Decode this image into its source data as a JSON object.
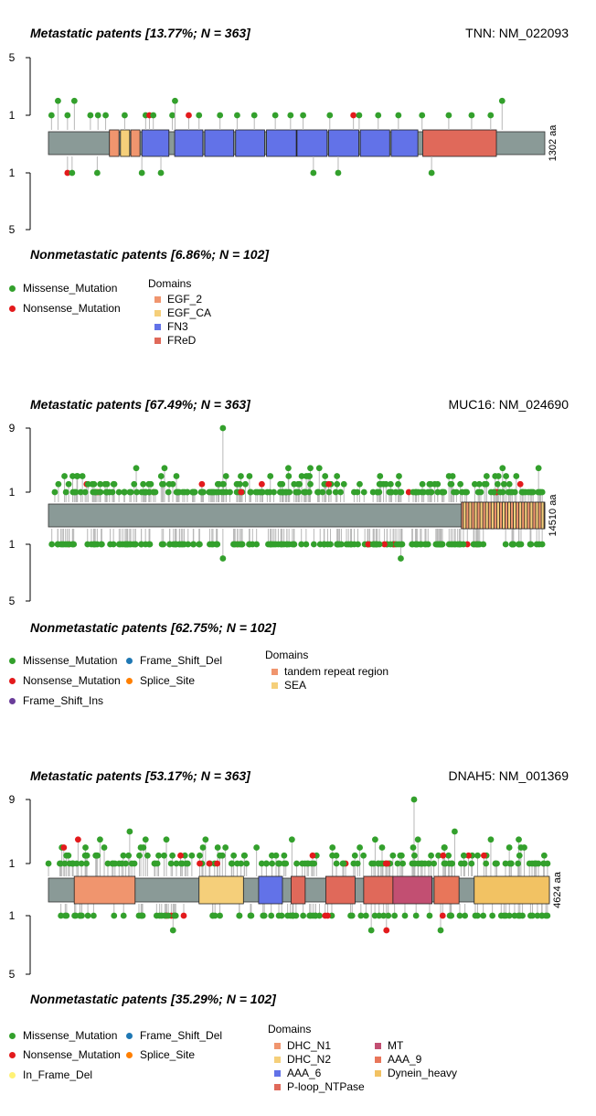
{
  "colors": {
    "missense": "#33a02c",
    "nonsense": "#e31a1c",
    "frame_shift_del": "#1f78b4",
    "splice_site": "#ff7f00",
    "frame_shift_ins": "#6a3d9a",
    "in_frame_del": "#fff275",
    "backbone": "#8a9a97",
    "stem": "#b8b8b8"
  },
  "chart_data": [
    {
      "type": "lollipop",
      "title": "Metastatic patents [13.77%; N = 363]",
      "bottom_title": "Nonmetastatic patents [6.86%; N = 102]",
      "gene_label": "TNN: NM_022093",
      "protein_length": 1302,
      "protein_length_label": "1302 aa",
      "y_ticks_top": [
        "5",
        "1"
      ],
      "y_ticks_bottom": [
        "1",
        "5"
      ],
      "ylim_top": [
        0,
        5
      ],
      "ylim_bottom": [
        0,
        5
      ],
      "variant_legend": [
        {
          "label": "Missense_Mutation",
          "color": "#33a02c"
        },
        {
          "label": "Nonsense_Mutation",
          "color": "#e31a1c"
        }
      ],
      "domains_title": "Domains",
      "domain_legend": [
        {
          "label": "EGF_2",
          "color": "#f0956e"
        },
        {
          "label": "EGF_CA",
          "color": "#f5cf7a"
        },
        {
          "label": "FN3",
          "color": "#6272e8"
        },
        {
          "label": "FReD",
          "color": "#e0695a"
        }
      ],
      "domains": [
        {
          "name": "EGF_2",
          "start": 160,
          "end": 185,
          "color": "#f0956e"
        },
        {
          "name": "EGF_CA",
          "start": 189,
          "end": 213,
          "color": "#f5cf7a"
        },
        {
          "name": "EGF_2",
          "start": 216,
          "end": 240,
          "color": "#f0956e"
        },
        {
          "name": "FN3",
          "start": 245,
          "end": 316,
          "color": "#6272e8"
        },
        {
          "name": "FN3",
          "start": 331,
          "end": 405,
          "color": "#6272e8"
        },
        {
          "name": "FN3",
          "start": 410,
          "end": 486,
          "color": "#6272e8"
        },
        {
          "name": "FN3",
          "start": 491,
          "end": 567,
          "color": "#6272e8"
        },
        {
          "name": "FN3",
          "start": 572,
          "end": 650,
          "color": "#6272e8"
        },
        {
          "name": "FN3",
          "start": 652,
          "end": 731,
          "color": "#6272e8"
        },
        {
          "name": "FN3",
          "start": 735,
          "end": 814,
          "color": "#6272e8"
        },
        {
          "name": "FN3",
          "start": 818,
          "end": 895,
          "color": "#6272e8"
        },
        {
          "name": "FN3",
          "start": 899,
          "end": 969,
          "color": "#6272e8"
        },
        {
          "name": "FReD",
          "start": 982,
          "end": 1175,
          "color": "#e0695a"
        }
      ],
      "top_mutations": [
        {
          "pos": 8,
          "count": 1,
          "type": "missense"
        },
        {
          "pos": 25,
          "count": 2,
          "type": "missense"
        },
        {
          "pos": 50,
          "count": 1,
          "type": "missense"
        },
        {
          "pos": 68,
          "count": 2,
          "type": "missense"
        },
        {
          "pos": 110,
          "count": 1,
          "type": "missense"
        },
        {
          "pos": 130,
          "count": 1,
          "type": "missense"
        },
        {
          "pos": 150,
          "count": 1,
          "type": "missense"
        },
        {
          "pos": 200,
          "count": 1,
          "type": "missense"
        },
        {
          "pos": 255,
          "count": 1,
          "type": "missense"
        },
        {
          "pos": 265,
          "count": 1,
          "type": "nonsense"
        },
        {
          "pos": 275,
          "count": 1,
          "type": "missense"
        },
        {
          "pos": 325,
          "count": 1,
          "type": "missense"
        },
        {
          "pos": 332,
          "count": 2,
          "type": "missense"
        },
        {
          "pos": 368,
          "count": 1,
          "type": "nonsense"
        },
        {
          "pos": 395,
          "count": 1,
          "type": "missense"
        },
        {
          "pos": 450,
          "count": 1,
          "type": "missense"
        },
        {
          "pos": 495,
          "count": 1,
          "type": "missense"
        },
        {
          "pos": 540,
          "count": 1,
          "type": "missense"
        },
        {
          "pos": 595,
          "count": 1,
          "type": "missense"
        },
        {
          "pos": 635,
          "count": 1,
          "type": "missense"
        },
        {
          "pos": 668,
          "count": 1,
          "type": "missense"
        },
        {
          "pos": 738,
          "count": 1,
          "type": "missense"
        },
        {
          "pos": 800,
          "count": 1,
          "type": "nonsense"
        },
        {
          "pos": 815,
          "count": 1,
          "type": "missense"
        },
        {
          "pos": 865,
          "count": 1,
          "type": "missense"
        },
        {
          "pos": 918,
          "count": 1,
          "type": "missense"
        },
        {
          "pos": 980,
          "count": 1,
          "type": "missense"
        },
        {
          "pos": 1050,
          "count": 1,
          "type": "missense"
        },
        {
          "pos": 1110,
          "count": 1,
          "type": "missense"
        },
        {
          "pos": 1160,
          "count": 1,
          "type": "missense"
        },
        {
          "pos": 1190,
          "count": 2,
          "type": "missense"
        }
      ],
      "bottom_mutations": [
        {
          "pos": 50,
          "count": 1,
          "type": "nonsense"
        },
        {
          "pos": 62,
          "count": 1,
          "type": "missense"
        },
        {
          "pos": 128,
          "count": 1,
          "type": "missense"
        },
        {
          "pos": 245,
          "count": 1,
          "type": "missense"
        },
        {
          "pos": 295,
          "count": 1,
          "type": "missense"
        },
        {
          "pos": 695,
          "count": 1,
          "type": "missense"
        },
        {
          "pos": 760,
          "count": 1,
          "type": "missense"
        },
        {
          "pos": 1005,
          "count": 1,
          "type": "missense"
        }
      ]
    },
    {
      "type": "lollipop",
      "title": "Metastatic patents [67.49%; N = 363]",
      "bottom_title": "Nonmetastatic patents [62.75%; N = 102]",
      "gene_label": "MUC16: NM_024690",
      "protein_length": 14510,
      "protein_length_label": "14510 aa",
      "y_ticks_top": [
        "9",
        "1"
      ],
      "y_ticks_bottom": [
        "1",
        "5"
      ],
      "ylim_top": [
        0,
        9
      ],
      "ylim_bottom": [
        0,
        5
      ],
      "variant_legend": [
        {
          "label": "Missense_Mutation",
          "color": "#33a02c"
        },
        {
          "label": "Nonsense_Mutation",
          "color": "#e31a1c"
        },
        {
          "label": "Frame_Shift_Ins",
          "color": "#6a3d9a"
        },
        {
          "label": "Frame_Shift_Del",
          "color": "#1f78b4"
        },
        {
          "label": "Splice_Site",
          "color": "#ff7f00"
        }
      ],
      "domains_title": "Domains",
      "domain_legend": [
        {
          "label": "tandem repeat region",
          "color": "#f0956e"
        },
        {
          "label": "SEA",
          "color": "#f5cf7a"
        }
      ],
      "domains": [
        {
          "name": "tandem repeat region",
          "start": 12070,
          "end": 14510,
          "color": "#f0956e"
        }
      ],
      "sea_repeats": 15,
      "highlights_top": [
        {
          "pos": 5100,
          "count": 9,
          "type": "missense"
        }
      ],
      "highlights_bottom": [
        {
          "pos": 5100,
          "count": 2,
          "type": "missense"
        },
        {
          "pos": 10300,
          "count": 2,
          "type": "missense"
        }
      ]
    },
    {
      "type": "lollipop",
      "title": "Metastatic patents [53.17%; N = 363]",
      "bottom_title": "Nonmetastatic patents [35.29%; N = 102]",
      "gene_label": "DNAH5: NM_001369",
      "protein_length": 4624,
      "protein_length_label": "4624 aa",
      "y_ticks_top": [
        "9",
        "1"
      ],
      "y_ticks_bottom": [
        "1",
        "5"
      ],
      "ylim_top": [
        0,
        9
      ],
      "ylim_bottom": [
        0,
        5
      ],
      "variant_legend": [
        {
          "label": "Missense_Mutation",
          "color": "#33a02c"
        },
        {
          "label": "Nonsense_Mutation",
          "color": "#e31a1c"
        },
        {
          "label": "In_Frame_Del",
          "color": "#fff275"
        },
        {
          "label": "Frame_Shift_Del",
          "color": "#1f78b4"
        },
        {
          "label": "Splice_Site",
          "color": "#ff7f00"
        }
      ],
      "domains_title": "Domains",
      "domain_legend": [
        {
          "label": "DHC_N1",
          "color": "#f0956e"
        },
        {
          "label": "DHC_N2",
          "color": "#f5cf7a"
        },
        {
          "label": "AAA_6",
          "color": "#6272e8"
        },
        {
          "label": "P-loop_NTPase",
          "color": "#e0695a"
        },
        {
          "label": "MT",
          "color": "#c24f72"
        },
        {
          "label": "AAA_9",
          "color": "#e8765a"
        },
        {
          "label": "Dynein_heavy",
          "color": "#f2c263"
        }
      ],
      "domains": [
        {
          "name": "DHC_N1",
          "start": 238,
          "end": 800,
          "color": "#f0956e"
        },
        {
          "name": "DHC_N2",
          "start": 1390,
          "end": 1800,
          "color": "#f5cf7a"
        },
        {
          "name": "AAA_6",
          "start": 1940,
          "end": 2160,
          "color": "#6272e8"
        },
        {
          "name": "P-loop_NTPase",
          "start": 2240,
          "end": 2370,
          "color": "#e0695a"
        },
        {
          "name": "P-loop_NTPase",
          "start": 2560,
          "end": 2830,
          "color": "#e0695a"
        },
        {
          "name": "P-loop_NTPase",
          "start": 2910,
          "end": 3180,
          "color": "#e0695a"
        },
        {
          "name": "MT",
          "start": 3180,
          "end": 3540,
          "color": "#c24f72"
        },
        {
          "name": "AAA_9",
          "start": 3560,
          "end": 3790,
          "color": "#e8765a"
        },
        {
          "name": "Dynein_heavy",
          "start": 3930,
          "end": 4624,
          "color": "#f2c263"
        }
      ],
      "highlights_top": [
        {
          "pos": 3375,
          "count": 9,
          "type": "missense"
        },
        {
          "pos": 750,
          "count": 5,
          "type": "missense"
        },
        {
          "pos": 3750,
          "count": 5,
          "type": "missense"
        }
      ],
      "highlights_bottom": [
        {
          "pos": 1150,
          "count": 2,
          "type": "missense"
        },
        {
          "pos": 2980,
          "count": 2,
          "type": "missense"
        },
        {
          "pos": 3120,
          "count": 2,
          "type": "nonsense"
        },
        {
          "pos": 3620,
          "count": 2,
          "type": "missense"
        }
      ]
    }
  ]
}
